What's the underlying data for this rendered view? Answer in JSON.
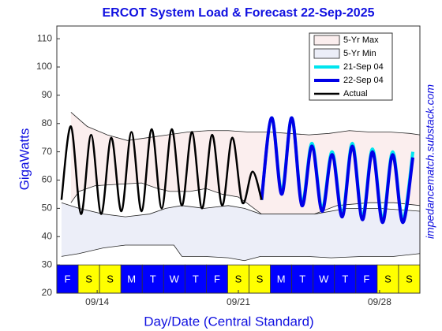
{
  "chart_data": {
    "type": "line",
    "title": "ERCOT System Load & Forecast 22-Sep-2025",
    "y_label": "GigaWatts",
    "x_label": "Day/Date (Central Standard)",
    "source": "impedancematch.substack.com",
    "xlim": [
      0,
      18
    ],
    "ylim": [
      20,
      114.5
    ],
    "yticks": [
      20,
      30,
      40,
      50,
      60,
      70,
      80,
      90,
      100,
      110
    ],
    "xticks": [
      {
        "value": 2,
        "label": "09/14"
      },
      {
        "value": 9,
        "label": "09/21"
      },
      {
        "value": 16,
        "label": "09/28"
      }
    ],
    "legend": "upper right",
    "day_strip": {
      "ylim": [
        20,
        30
      ],
      "days": [
        "F",
        "S",
        "S",
        "M",
        "T",
        "W",
        "T",
        "F",
        "S",
        "S",
        "M",
        "T",
        "W",
        "T",
        "F",
        "S",
        "S"
      ],
      "colors": [
        "#0000ff",
        "#ffff00",
        "#ffff00",
        "#0000ff",
        "#0000ff",
        "#0000ff",
        "#0000ff",
        "#0000ff",
        "#ffff00",
        "#ffff00",
        "#0000ff",
        "#0000ff",
        "#0000ff",
        "#0000ff",
        "#0000ff",
        "#ffff00",
        "#ffff00"
      ]
    },
    "series": [
      {
        "name": "5-Yr Max",
        "kind": "band",
        "color": "#fbeeee",
        "upper": {
          "x": [
            0.7,
            1.5,
            2.5,
            3.5,
            4.5,
            5.5,
            6.5,
            7.5,
            8.5,
            9.5,
            10.5,
            11.5,
            12.5,
            13.5,
            14.5,
            15.5,
            16.5,
            17.5,
            18
          ],
          "values": [
            84,
            79,
            76,
            74,
            75,
            76,
            77,
            77.5,
            77.5,
            77,
            77,
            76.5,
            76,
            76.5,
            77.5,
            77,
            77,
            76.5,
            76
          ]
        },
        "lower": {
          "x": [
            0.7,
            1.1,
            1.9,
            3,
            4.2,
            5,
            5.6,
            6.6,
            7.4,
            8.2,
            9,
            9.4,
            10.7,
            12.4,
            13.9,
            15.5,
            16.7,
            18
          ],
          "values": [
            52,
            56,
            58,
            58.5,
            59,
            57,
            56,
            56,
            57,
            55,
            54,
            52,
            45,
            47,
            51,
            52,
            52,
            51
          ]
        }
      },
      {
        "name": "5-Yr Min",
        "kind": "band",
        "color": "#eceef8",
        "upper": {
          "x": [
            0.23,
            1.1,
            2.3,
            3.4,
            4.6,
            5.4,
            6.2,
            7.3,
            8.5,
            9.3,
            10.1,
            12.8,
            14.4,
            16,
            18
          ],
          "values": [
            52,
            50,
            48,
            47,
            48,
            50,
            51,
            50,
            51,
            50,
            48,
            48,
            50,
            50,
            49
          ]
        },
        "lower": {
          "x": [
            0.23,
            1.1,
            2.3,
            3.4,
            4.6,
            5.8,
            6.2,
            7.3,
            8.5,
            9.3,
            10.1,
            11.2,
            12.4,
            13.6,
            15.2,
            16.7,
            18
          ],
          "values": [
            33,
            34,
            36,
            37,
            37,
            37,
            33,
            33,
            32.5,
            31.5,
            33,
            33,
            33,
            32.5,
            33,
            33,
            34
          ]
        }
      },
      {
        "name": "21-Sep 04",
        "kind": "line",
        "color": "#00e5ee",
        "width": 4,
        "x": [
          10.15,
          10.65,
          11.15,
          11.65,
          12.15,
          12.65,
          13.15,
          13.65,
          14.15,
          14.65,
          15.15,
          15.65,
          16.15,
          16.65,
          17.15,
          17.65
        ],
        "values": [
          53,
          82,
          56,
          82,
          52,
          73,
          50,
          70,
          48,
          73,
          47,
          71,
          46,
          70,
          46,
          70
        ]
      },
      {
        "name": "22-Sep 04",
        "kind": "line",
        "color": "#0000e6",
        "width": 4,
        "x": [
          10.15,
          10.65,
          11.15,
          11.65,
          12.15,
          12.65,
          13.15,
          13.65,
          14.15,
          14.65,
          15.15,
          15.65,
          16.15,
          16.65,
          17.15,
          17.65
        ],
        "values": [
          53,
          82,
          55,
          82,
          51,
          72,
          49,
          69,
          47,
          72,
          46,
          70,
          45,
          69,
          45,
          68
        ]
      },
      {
        "name": "Actual",
        "kind": "line",
        "color": "#000000",
        "width": 2.5,
        "x": [
          0.23,
          0.7,
          1.2,
          1.7,
          2.2,
          2.7,
          3.2,
          3.7,
          4.2,
          4.7,
          5.2,
          5.7,
          6.2,
          6.7,
          7.2,
          7.7,
          8.2,
          8.7,
          9.2,
          9.7,
          10.15
        ],
        "values": [
          53,
          79,
          48,
          76,
          48,
          75,
          49,
          77,
          49,
          78,
          50,
          78,
          51,
          77,
          50,
          76,
          51,
          75,
          52,
          63,
          53
        ]
      }
    ]
  }
}
